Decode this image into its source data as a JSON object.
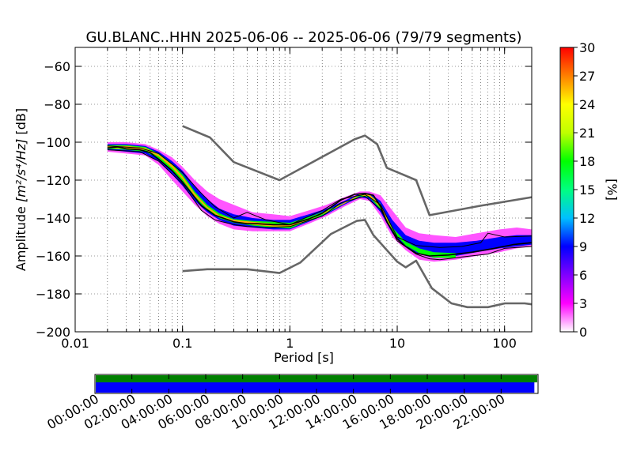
{
  "chart_data": {
    "type": "heatmap",
    "title": "GU.BLANC..HHN   2025-06-06 -- 2025-06-06  (79/79 segments)",
    "xlabel": "Period [s]",
    "ylabel_prefix": "Amplitude ",
    "ylabel_units": "[m²/s⁴/Hz]",
    "ylabel_suffix": " [dB]",
    "x_scale": "log",
    "xlim": [
      0.01,
      179
    ],
    "ylim": [
      -200,
      -50
    ],
    "grid": true,
    "x_ticks": [
      {
        "value": 0.01,
        "label": "0.01"
      },
      {
        "value": 0.1,
        "label": "0.1"
      },
      {
        "value": 1,
        "label": "1"
      },
      {
        "value": 10,
        "label": "10"
      },
      {
        "value": 100,
        "label": "100"
      }
    ],
    "y_ticks": [
      {
        "value": -60,
        "label": "−60"
      },
      {
        "value": -80,
        "label": "−80"
      },
      {
        "value": -100,
        "label": "−100"
      },
      {
        "value": -120,
        "label": "−120"
      },
      {
        "value": -140,
        "label": "−140"
      },
      {
        "value": -160,
        "label": "−160"
      },
      {
        "value": -180,
        "label": "−180"
      },
      {
        "value": -200,
        "label": "−200"
      }
    ],
    "colorbar": {
      "label": "[%]",
      "min": 0,
      "max": 30,
      "ticks": [
        "0",
        "3",
        "6",
        "9",
        "12",
        "15",
        "18",
        "21",
        "24",
        "27",
        "30"
      ],
      "colors": [
        "#ffffff",
        "#ff00ff",
        "#8000ff",
        "#0000ff",
        "#00c0ff",
        "#00ff80",
        "#00ff00",
        "#c0ff00",
        "#ffff00",
        "#ff8000",
        "#ff0000"
      ]
    },
    "noise_model_high": {
      "color": "#666666",
      "x": [
        0.1,
        0.18,
        0.3,
        0.8,
        4.0,
        5.0,
        6.5,
        8.0,
        15.0,
        20.0,
        60.0,
        179.0
      ],
      "y": [
        -91.5,
        -97.5,
        -110.5,
        -120.0,
        -98.5,
        -96.5,
        -101.0,
        -113.5,
        -120.0,
        -138.5,
        -133.5,
        -129.0
      ]
    },
    "noise_model_low": {
      "color": "#666666",
      "x": [
        0.1,
        0.17,
        0.4,
        0.8,
        1.25,
        2.4,
        4.2,
        5.0,
        6.0,
        10.0,
        12.0,
        15.0,
        21.0,
        32.0,
        45.0,
        70.0,
        101.0,
        154.0,
        179.0
      ],
      "y": [
        -168.0,
        -167.0,
        -167.0,
        -169.0,
        -163.5,
        -148.5,
        -141.5,
        -141.0,
        -149.0,
        -163.0,
        -166.0,
        -162.5,
        -177.0,
        -185.0,
        -187.0,
        -187.0,
        -185.0,
        -185.0,
        -185.5
      ]
    },
    "mode_curve": {
      "color": "#000000",
      "x": [
        0.02,
        0.025,
        0.03,
        0.04,
        0.05,
        0.06,
        0.08,
        0.1,
        0.15,
        0.2,
        0.3,
        0.4,
        0.5,
        0.7,
        1.0,
        1.5,
        2.0,
        3.0,
        4.0,
        5.0,
        6.0,
        7.0,
        8.0,
        10.0,
        12.0,
        15.0,
        20.0,
        30.0,
        50.0,
        80.0,
        120.0,
        179.0
      ],
      "y": [
        -103.0,
        -102.5,
        -103.5,
        -104.0,
        -105.5,
        -109.0,
        -115.0,
        -121.0,
        -133.5,
        -138.5,
        -142.0,
        -143.0,
        -143.0,
        -143.5,
        -143.5,
        -140.5,
        -137.5,
        -130.5,
        -127.5,
        -127.0,
        -128.0,
        -134.0,
        -142.0,
        -151.0,
        -155.0,
        -158.5,
        -160.0,
        -159.5,
        -158.0,
        -156.0,
        -154.0,
        -153.0
      ]
    },
    "percentile_curves": [
      {
        "color": "#000000",
        "x": [
          0.02,
          0.04,
          0.06,
          0.1,
          0.15,
          0.2,
          0.3,
          0.4,
          0.6,
          1.0,
          2.0,
          3.0,
          5.0,
          7.0,
          10.0,
          15.0,
          25.0,
          40.0,
          60.0,
          70.0,
          100.0,
          179.0
        ],
        "y": [
          -102.0,
          -103.0,
          -106.0,
          -116.0,
          -127.0,
          -134.0,
          -140.0,
          -137.0,
          -141.0,
          -143.5,
          -136.0,
          -130.0,
          -127.5,
          -133.0,
          -150.0,
          -154.5,
          -155.5,
          -155.0,
          -153.0,
          -148.0,
          -150.0,
          -149.5
        ]
      },
      {
        "color": "#000000",
        "x": [
          0.02,
          0.04,
          0.06,
          0.1,
          0.15,
          0.2,
          0.3,
          0.4,
          0.6,
          1.0,
          2.0,
          3.0,
          5.0,
          7.0,
          10.0,
          15.0,
          20.0,
          25.0,
          40.0,
          70.0,
          100.0,
          179.0
        ],
        "y": [
          -104.0,
          -105.0,
          -110.0,
          -122.0,
          -136.0,
          -141.0,
          -143.5,
          -144.5,
          -145.0,
          -144.5,
          -139.0,
          -132.0,
          -128.5,
          -135.5,
          -152.0,
          -159.0,
          -161.5,
          -162.0,
          -160.5,
          -159.0,
          -156.0,
          -155.0
        ]
      }
    ],
    "density_bands": [
      {
        "x": [
          0.02,
          0.03,
          0.045,
          0.06,
          0.08,
          0.1,
          0.13,
          0.17,
          0.22,
          0.3,
          0.45,
          0.7,
          1.0,
          1.5,
          2.2,
          3.2,
          4.5,
          5.5,
          7.0,
          9.0,
          12.0,
          16.0,
          22.0,
          35.0,
          55.0,
          90.0,
          130.0,
          179.0
        ],
        "y_top": [
          -100.0,
          -100.0,
          -101.0,
          -104.0,
          -108.0,
          -113.0,
          -120.0,
          -126.0,
          -130.0,
          -133.0,
          -137.0,
          -138.0,
          -139.0,
          -136.0,
          -133.0,
          -129.0,
          -126.0,
          -126.0,
          -128.0,
          -136.0,
          -145.0,
          -148.0,
          -149.0,
          -150.0,
          -148.0,
          -146.0,
          -145.0,
          -146.0
        ],
        "y_bottom": [
          -105.0,
          -106.0,
          -107.0,
          -112.0,
          -120.0,
          -126.0,
          -133.0,
          -139.0,
          -143.0,
          -146.0,
          -147.0,
          -147.0,
          -147.0,
          -143.0,
          -139.0,
          -134.0,
          -130.0,
          -131.0,
          -139.0,
          -150.0,
          -157.0,
          -162.0,
          -163.0,
          -162.0,
          -160.0,
          -158.0,
          -156.0,
          -155.0
        ],
        "value": 2
      },
      {
        "x": [
          0.02,
          0.03,
          0.045,
          0.06,
          0.08,
          0.1,
          0.13,
          0.17,
          0.22,
          0.3,
          0.45,
          0.7,
          1.0,
          1.5,
          2.2,
          3.2,
          4.5,
          5.5,
          7.0,
          9.0,
          12.0,
          16.0,
          22.0,
          35.0,
          55.0,
          90.0,
          130.0,
          179.0
        ],
        "y_top": [
          -101.0,
          -101.0,
          -102.0,
          -105.0,
          -110.0,
          -115.0,
          -123.0,
          -130.0,
          -135.0,
          -138.0,
          -140.0,
          -141.0,
          -141.0,
          -138.0,
          -135.0,
          -131.0,
          -127.0,
          -127.0,
          -131.0,
          -141.0,
          -149.0,
          -152.0,
          -153.0,
          -153.0,
          -152.0,
          -150.0,
          -149.0,
          -149.0
        ],
        "y_bottom": [
          -104.0,
          -105.0,
          -106.0,
          -110.0,
          -117.0,
          -123.0,
          -131.0,
          -137.0,
          -141.0,
          -144.0,
          -145.0,
          -146.0,
          -146.0,
          -142.0,
          -138.0,
          -133.0,
          -129.0,
          -130.0,
          -137.0,
          -148.0,
          -155.0,
          -159.0,
          -161.0,
          -160.0,
          -158.0,
          -156.0,
          -155.0,
          -154.0
        ],
        "value": 9
      },
      {
        "x": [
          0.02,
          0.03,
          0.045,
          0.06,
          0.08,
          0.1,
          0.13,
          0.17,
          0.22,
          0.3,
          0.45,
          0.7,
          1.0,
          1.5,
          2.2,
          3.2,
          4.5,
          5.5,
          7.0,
          9.0,
          12.0,
          16.0,
          22.0,
          35.0
        ],
        "y_top": [
          -101.5,
          -101.5,
          -102.5,
          -106.0,
          -111.5,
          -117.0,
          -126.0,
          -133.0,
          -137.5,
          -140.5,
          -141.5,
          -142.0,
          -142.5,
          -139.5,
          -136.0,
          -132.0,
          -127.5,
          -127.5,
          -132.5,
          -145.0,
          -152.5,
          -156.0,
          -158.0,
          -158.5
        ],
        "y_bottom": [
          -103.5,
          -104.0,
          -105.0,
          -108.5,
          -115.0,
          -121.0,
          -129.5,
          -135.5,
          -140.0,
          -142.5,
          -144.0,
          -145.0,
          -145.5,
          -141.5,
          -137.5,
          -132.5,
          -128.5,
          -129.0,
          -135.5,
          -147.0,
          -154.5,
          -158.5,
          -161.0,
          -161.0
        ],
        "value": 18
      },
      {
        "x": [
          0.02,
          0.03,
          0.045,
          0.06,
          0.08,
          0.1,
          0.13,
          0.17,
          0.22,
          0.3,
          0.45,
          0.7,
          1.0,
          1.5,
          2.2,
          3.2,
          4.5,
          5.5,
          7.0,
          9.0
        ],
        "y_top": [
          -102.0,
          -102.0,
          -103.0,
          -106.5,
          -112.0,
          -118.0,
          -127.0,
          -134.0,
          -138.5,
          -141.0,
          -142.0,
          -143.0,
          -143.5,
          -140.5,
          -136.5,
          -132.0,
          -127.5,
          -127.5,
          -133.0,
          -146.0
        ],
        "y_bottom": [
          -103.0,
          -103.5,
          -104.0,
          -107.5,
          -113.5,
          -119.5,
          -128.5,
          -135.0,
          -139.5,
          -142.0,
          -143.5,
          -144.5,
          -144.5,
          -141.0,
          -137.0,
          -132.5,
          -128.0,
          -128.5,
          -134.5,
          -146.5
        ],
        "value": 26
      }
    ],
    "timeline": {
      "tick_labels": [
        "00:00:00",
        "02:00:00",
        "04:00:00",
        "06:00:00",
        "08:00:00",
        "10:00:00",
        "12:00:00",
        "14:00:00",
        "16:00:00",
        "18:00:00",
        "20:00:00",
        "22:00:00"
      ],
      "data_color": "#008000",
      "segments_color": "#0000ff",
      "data_coverage": [
        0,
        24
      ],
      "segments_coverage": [
        0,
        23.8
      ],
      "range_hours": [
        0,
        24
      ]
    }
  }
}
